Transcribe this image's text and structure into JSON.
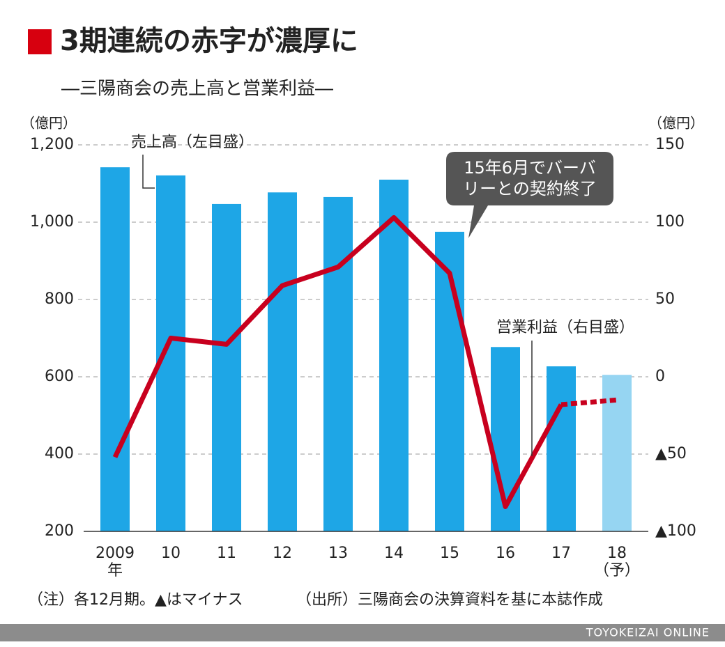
{
  "chart_data": {
    "type": "bar",
    "title": "3期連続の赤字が濃厚に",
    "subtitle": "―三陽商会の売上高と営業利益―",
    "y_unit": "（億円）",
    "y2_unit": "（億円）",
    "categories": [
      "2009",
      "10",
      "11",
      "12",
      "13",
      "14",
      "15",
      "16",
      "17",
      "18"
    ],
    "category_sublabels": [
      "年",
      null,
      null,
      null,
      null,
      null,
      null,
      null,
      null,
      "（予）"
    ],
    "series": [
      {
        "name": "売上高（左目盛）",
        "type": "bar",
        "color": "#1ea6e6",
        "forecast_color": "#96d5f2",
        "values": [
          1142,
          1121,
          1047,
          1077,
          1065,
          1110,
          975,
          677,
          627,
          605
        ]
      },
      {
        "name": "営業利益（右目盛）",
        "type": "line",
        "axis": "y2",
        "color": "#c8001e",
        "dashed_from": 8,
        "values": [
          -52,
          25,
          21,
          59,
          71,
          103,
          67,
          -84,
          -18,
          -15
        ]
      }
    ],
    "forecast_index": 9,
    "ylim": [
      200,
      1200
    ],
    "yticks": [
      {
        "value": 1200,
        "label": "1,200"
      },
      {
        "value": 1000,
        "label": "1,000"
      },
      800,
      600,
      400,
      200
    ],
    "y2lim": [
      -100,
      150
    ],
    "y2ticks": [
      150,
      100,
      50,
      0,
      {
        "value": -50,
        "label": "▲50"
      },
      {
        "value": -100,
        "label": "▲100"
      }
    ],
    "grid": true,
    "callout": [
      "15年6月でバーバ",
      "リーとの契約終了"
    ],
    "note": "（注）各12月期。▲はマイナス",
    "source": "（出所）三陽商会の決算資料を基に本誌作成",
    "credit": "TOYOKEIZAI ONLINE"
  }
}
